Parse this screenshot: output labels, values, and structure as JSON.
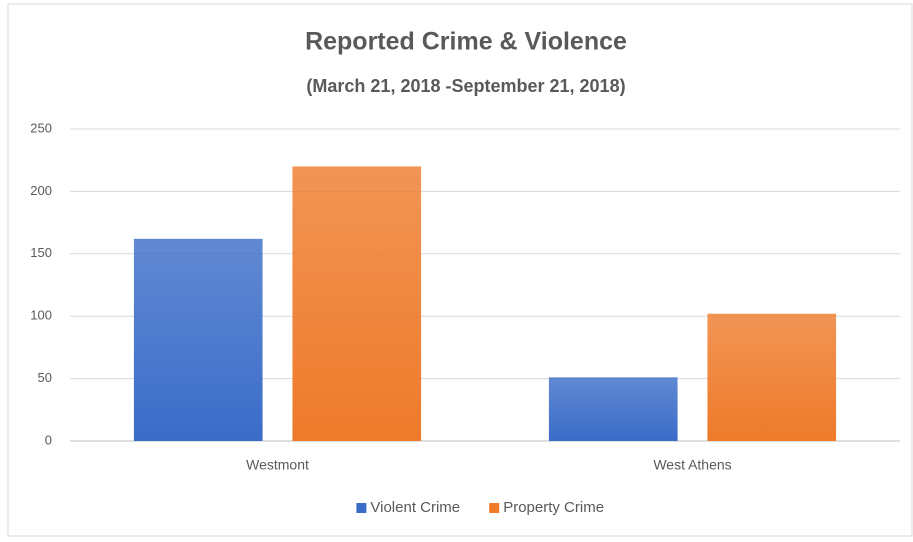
{
  "chart_data": {
    "type": "bar",
    "title": "Reported Crime & Violence",
    "subtitle": "(March 21, 2018 -September 21, 2018)",
    "categories": [
      "Westmont",
      "West Athens"
    ],
    "series": [
      {
        "name": "Violent Crime",
        "color": "#3a6cc8",
        "values": [
          162,
          51
        ]
      },
      {
        "name": "Property Crime",
        "color": "#ee7a2a",
        "values": [
          220,
          102
        ]
      }
    ],
    "ylim": [
      0,
      250
    ],
    "yticks": [
      0,
      50,
      100,
      150,
      200,
      250
    ],
    "grid": true,
    "legend": "bottom"
  }
}
